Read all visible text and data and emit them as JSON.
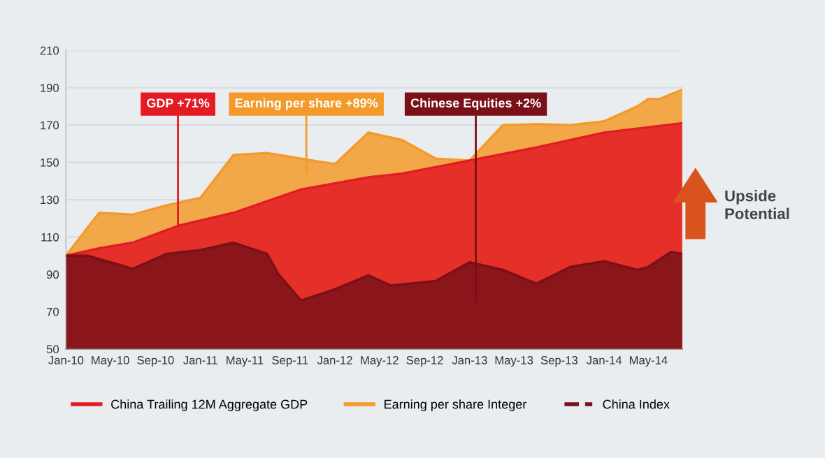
{
  "chart_data": {
    "type": "area",
    "series": [
      {
        "name": "China Trailing 12M Aggregate GDP",
        "color": "#e31b23",
        "x": [
          "2010-01",
          "2010-04",
          "2010-07",
          "2010-11",
          "2011-04",
          "2011-10",
          "2012-04",
          "2012-07",
          "2013-01",
          "2013-07",
          "2014-01",
          "2014-08"
        ],
        "values": [
          100,
          104,
          107,
          116,
          123,
          135.5,
          142,
          144,
          151,
          158,
          166,
          171
        ]
      },
      {
        "name": "Earning per share Integer",
        "color": "#f39a2b",
        "x": [
          "2010-01",
          "2010-04",
          "2010-07",
          "2010-10",
          "2011-01",
          "2011-04",
          "2011-07",
          "2011-10",
          "2012-01",
          "2012-04",
          "2012-07",
          "2012-10",
          "2013-01",
          "2013-04",
          "2013-07",
          "2013-10",
          "2014-01",
          "2014-04",
          "2014-05",
          "2014-06",
          "2014-08"
        ],
        "values": [
          100,
          123,
          122,
          127,
          131,
          154,
          155,
          152,
          149,
          166,
          162,
          152,
          151,
          170,
          170.5,
          170,
          172,
          180,
          184,
          184,
          189
        ]
      },
      {
        "name": "China Index",
        "color": "#7a1018",
        "line_style": "dashed",
        "x": [
          "2010-01",
          "2010-03",
          "2010-07",
          "2010-10",
          "2011-01",
          "2011-04",
          "2011-07",
          "2011-08",
          "2011-10",
          "2012-01",
          "2012-04",
          "2012-06",
          "2012-10",
          "2013-01",
          "2013-04",
          "2013-07",
          "2013-10",
          "2014-01",
          "2014-04",
          "2014-05",
          "2014-07",
          "2014-08"
        ],
        "values": [
          100,
          100,
          93,
          101,
          103,
          107,
          101,
          90,
          76,
          82,
          89.5,
          84,
          86.5,
          96.5,
          92.5,
          85,
          94,
          97,
          92.5,
          94,
          102,
          101
        ]
      }
    ],
    "xlim": [
      "2010-01",
      "2014-08"
    ],
    "xticks": [
      {
        "value": "2010-01",
        "label": "Jan-10"
      },
      {
        "value": "2010-05",
        "label": "May-10"
      },
      {
        "value": "2010-09",
        "label": "Sep-10"
      },
      {
        "value": "2011-01",
        "label": "Jan-11"
      },
      {
        "value": "2011-05",
        "label": "May-11"
      },
      {
        "value": "2011-09",
        "label": "Sep-11"
      },
      {
        "value": "2012-01",
        "label": "Jan-12"
      },
      {
        "value": "2012-05",
        "label": "May-12"
      },
      {
        "value": "2012-09",
        "label": "Sep-12"
      },
      {
        "value": "2013-01",
        "label": "Jan-13"
      },
      {
        "value": "2013-05",
        "label": "May-13"
      },
      {
        "value": "2013-09",
        "label": "Sep-13"
      },
      {
        "value": "2014-01",
        "label": "Jan-14"
      },
      {
        "value": "2014-05",
        "label": "May-14"
      }
    ],
    "ylim": [
      50,
      210
    ],
    "yticks": [
      50,
      70,
      90,
      110,
      130,
      150,
      170,
      190,
      210
    ],
    "grid": "y",
    "legend": "bottom",
    "annotations": [
      {
        "text": "GDP +71%",
        "x": "2010-11",
        "y": 116
      },
      "Earning per share +89%",
      "Chinese Equities +2%",
      "Upside Potential"
    ]
  }
}
